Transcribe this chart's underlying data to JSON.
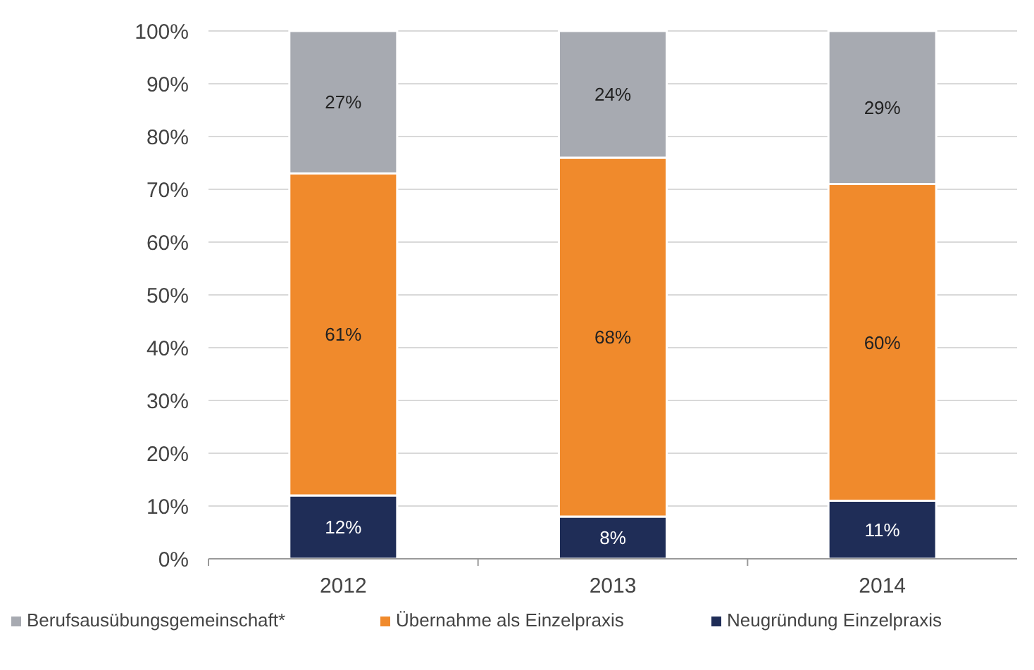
{
  "chart_data": {
    "type": "bar",
    "stacked": true,
    "categories": [
      "2012",
      "2013",
      "2014"
    ],
    "series": [
      {
        "name": "Neugründung Einzelpraxis",
        "color": "#1f2d57",
        "values": [
          12,
          8,
          11
        ],
        "value_labels": [
          "12%",
          "8%",
          "11%"
        ]
      },
      {
        "name": "Übernahme als Einzelpraxis",
        "color": "#f08a2c",
        "values": [
          61,
          68,
          60
        ],
        "value_labels": [
          "61%",
          "68%",
          "60%"
        ]
      },
      {
        "name": "Berufsausübungsgemeinschaft*",
        "color": "#a7aab1",
        "values": [
          27,
          24,
          29
        ],
        "value_labels": [
          "27%",
          "24%",
          "29%"
        ]
      }
    ],
    "ylim": [
      0,
      100
    ],
    "yticks": [
      {
        "value": 0,
        "label": "0%"
      },
      {
        "value": 10,
        "label": "10%"
      },
      {
        "value": 20,
        "label": "20%"
      },
      {
        "value": 30,
        "label": "30%"
      },
      {
        "value": 40,
        "label": "40%"
      },
      {
        "value": 50,
        "label": "50%"
      },
      {
        "value": 60,
        "label": "60%"
      },
      {
        "value": 70,
        "label": "70%"
      },
      {
        "value": 80,
        "label": "80%"
      },
      {
        "value": 90,
        "label": "90%"
      },
      {
        "value": 100,
        "label": "100%"
      }
    ],
    "grid": "y",
    "legend": "bottom"
  }
}
